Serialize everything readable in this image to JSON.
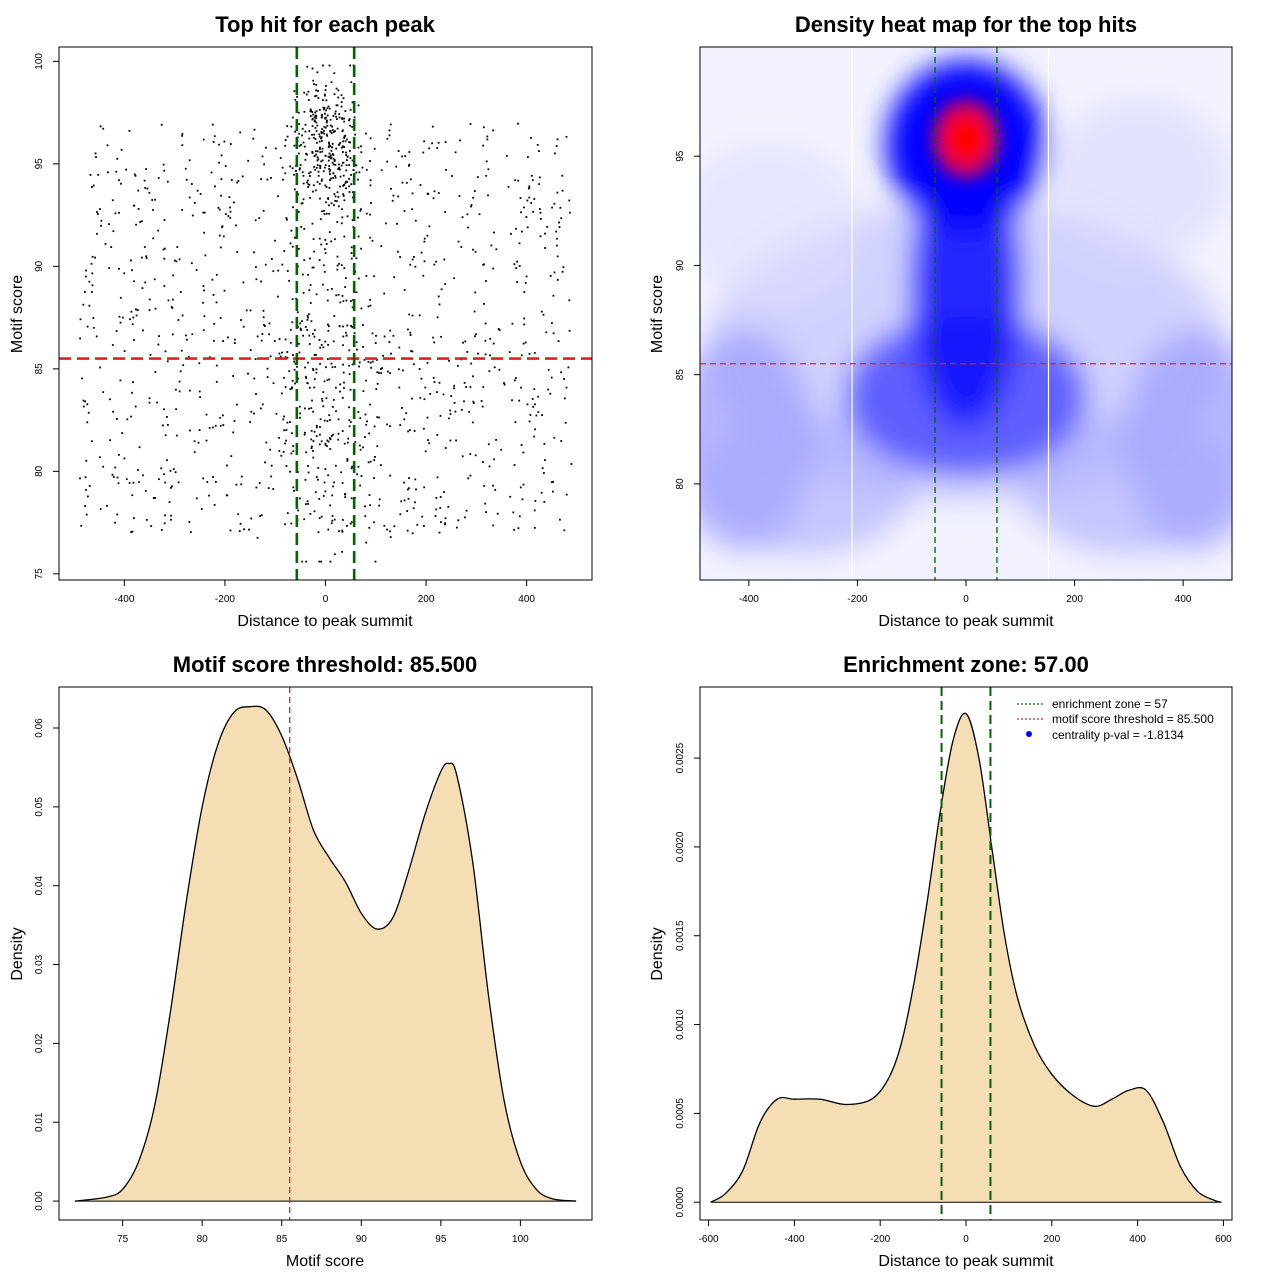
{
  "chart_data": [
    {
      "type": "scatter",
      "title": "Top hit for each peak",
      "xlabel": "Distance to peak summit",
      "ylabel": "Motif score",
      "xlim": [
        -530,
        530
      ],
      "ylim": [
        74.7,
        100.7
      ],
      "xticks": [
        -400,
        -200,
        0,
        200,
        400
      ],
      "yticks": [
        75,
        80,
        85,
        90,
        95,
        100
      ],
      "xtick_labels": [
        "-400",
        "-200",
        "0",
        "200",
        "400"
      ],
      "ytick_labels": [
        "75",
        "80",
        "85",
        "90",
        "95",
        "100"
      ],
      "threshold": 85.5,
      "enrichment_zone": 57,
      "point_count": 1600,
      "colors": {
        "points": "#000000",
        "threshold_line": "#dd2222",
        "zone_line": "#006400"
      },
      "point_generation": "approximate distribution of ~1600 top hits: uniform background in [-490,490] x [77,97] plus a central cluster near distance 0 / score 96 and a low-score central band near 84"
    },
    {
      "type": "heatmap",
      "title": "Density heat map for the top hits",
      "xlabel": "Distance to peak summit",
      "ylabel": "Motif score",
      "xlim": [
        -490,
        490
      ],
      "ylim": [
        75.6,
        100
      ],
      "xticks": [
        -400,
        -200,
        0,
        200,
        400
      ],
      "yticks": [
        80,
        85,
        90,
        95
      ],
      "xtick_labels": [
        "-400",
        "-200",
        "0",
        "200",
        "400"
      ],
      "ytick_labels": [
        "80",
        "85",
        "90",
        "95"
      ],
      "threshold": 85.5,
      "enrichment_zone": 57,
      "hotspot": {
        "x": 0,
        "y": 95.8
      },
      "white_guides_x": [
        -210,
        152
      ],
      "colors": {
        "low": "#ffffff",
        "mid": "#0000ff",
        "high": "#ff0000",
        "threshold_line": "#dd2222",
        "zone_line": "#006400"
      }
    },
    {
      "type": "area",
      "title": "Motif score threshold: 85.500",
      "xlabel": "Motif score",
      "ylabel": "Density",
      "xlim": [
        71,
        104.5
      ],
      "ylim": [
        -0.0024,
        0.0652
      ],
      "xticks": [
        75,
        80,
        85,
        90,
        95,
        100
      ],
      "yticks": [
        0.0,
        0.01,
        0.02,
        0.03,
        0.04,
        0.05,
        0.06
      ],
      "xtick_labels": [
        "75",
        "80",
        "85",
        "90",
        "95",
        "100"
      ],
      "ytick_labels": [
        "0.00",
        "0.01",
        "0.02",
        "0.03",
        "0.04",
        "0.05",
        "0.06"
      ],
      "x": [
        72,
        74,
        75,
        76,
        77,
        78,
        79,
        80,
        81,
        82,
        83,
        84,
        85,
        86,
        87,
        88,
        89,
        90,
        91,
        92,
        93,
        94,
        95,
        95.5,
        96,
        97,
        98,
        99,
        100,
        101,
        102,
        103.5
      ],
      "values": [
        0.0,
        0.0005,
        0.0015,
        0.005,
        0.012,
        0.024,
        0.038,
        0.05,
        0.058,
        0.062,
        0.0627,
        0.0623,
        0.059,
        0.0535,
        0.047,
        0.0435,
        0.0405,
        0.0365,
        0.0345,
        0.036,
        0.042,
        0.049,
        0.0545,
        0.0555,
        0.054,
        0.043,
        0.026,
        0.0125,
        0.005,
        0.0015,
        0.0003,
        0.0
      ],
      "threshold": 85.5,
      "colors": {
        "fill": "#f5deb3",
        "line": "#000000",
        "threshold_line": "#dd2222"
      }
    },
    {
      "type": "area",
      "title": "Enrichment zone: 57.00",
      "xlabel": "Distance to peak summit",
      "ylabel": "Density",
      "xlim": [
        -620,
        620
      ],
      "ylim": [
        -0.0001,
        0.0029
      ],
      "xticks": [
        -600,
        -400,
        -200,
        0,
        200,
        400,
        600
      ],
      "yticks": [
        0.0,
        0.0005,
        0.001,
        0.0015,
        0.002,
        0.0025
      ],
      "xtick_labels": [
        "-600",
        "-400",
        "-200",
        "0",
        "200",
        "400",
        "600"
      ],
      "ytick_labels": [
        "0.0000",
        "0.0005",
        "0.0010",
        "0.0015",
        "0.0020",
        "0.0025"
      ],
      "x": [
        -595,
        -560,
        -520,
        -480,
        -440,
        -400,
        -340,
        -280,
        -220,
        -180,
        -150,
        -120,
        -90,
        -60,
        -30,
        0,
        30,
        60,
        90,
        120,
        160,
        200,
        250,
        300,
        340,
        380,
        420,
        460,
        500,
        540,
        580,
        595
      ],
      "values": [
        0.0,
        5e-05,
        0.00018,
        0.00045,
        0.00058,
        0.00058,
        0.00058,
        0.00055,
        0.00058,
        0.0007,
        0.0009,
        0.00125,
        0.0017,
        0.0022,
        0.0026,
        0.00275,
        0.0025,
        0.002,
        0.0015,
        0.00115,
        0.00088,
        0.00072,
        0.0006,
        0.00054,
        0.00058,
        0.00063,
        0.00063,
        0.00045,
        0.0002,
        6e-05,
        1e-05,
        0.0
      ],
      "enrichment_zone": 57,
      "legend": {
        "position": "top-right",
        "entries": [
          {
            "label": "enrichment zone = 57",
            "style": "dotted",
            "color": "#006400"
          },
          {
            "label": "motif score threshold = 85.500",
            "style": "dotted",
            "color": "#dd2222"
          },
          {
            "label": "centrality p-val = -1.8134",
            "style": "point",
            "color": "#0000ff"
          }
        ]
      },
      "colors": {
        "fill": "#f5deb3",
        "line": "#000000",
        "zone_line": "#006400"
      }
    }
  ]
}
